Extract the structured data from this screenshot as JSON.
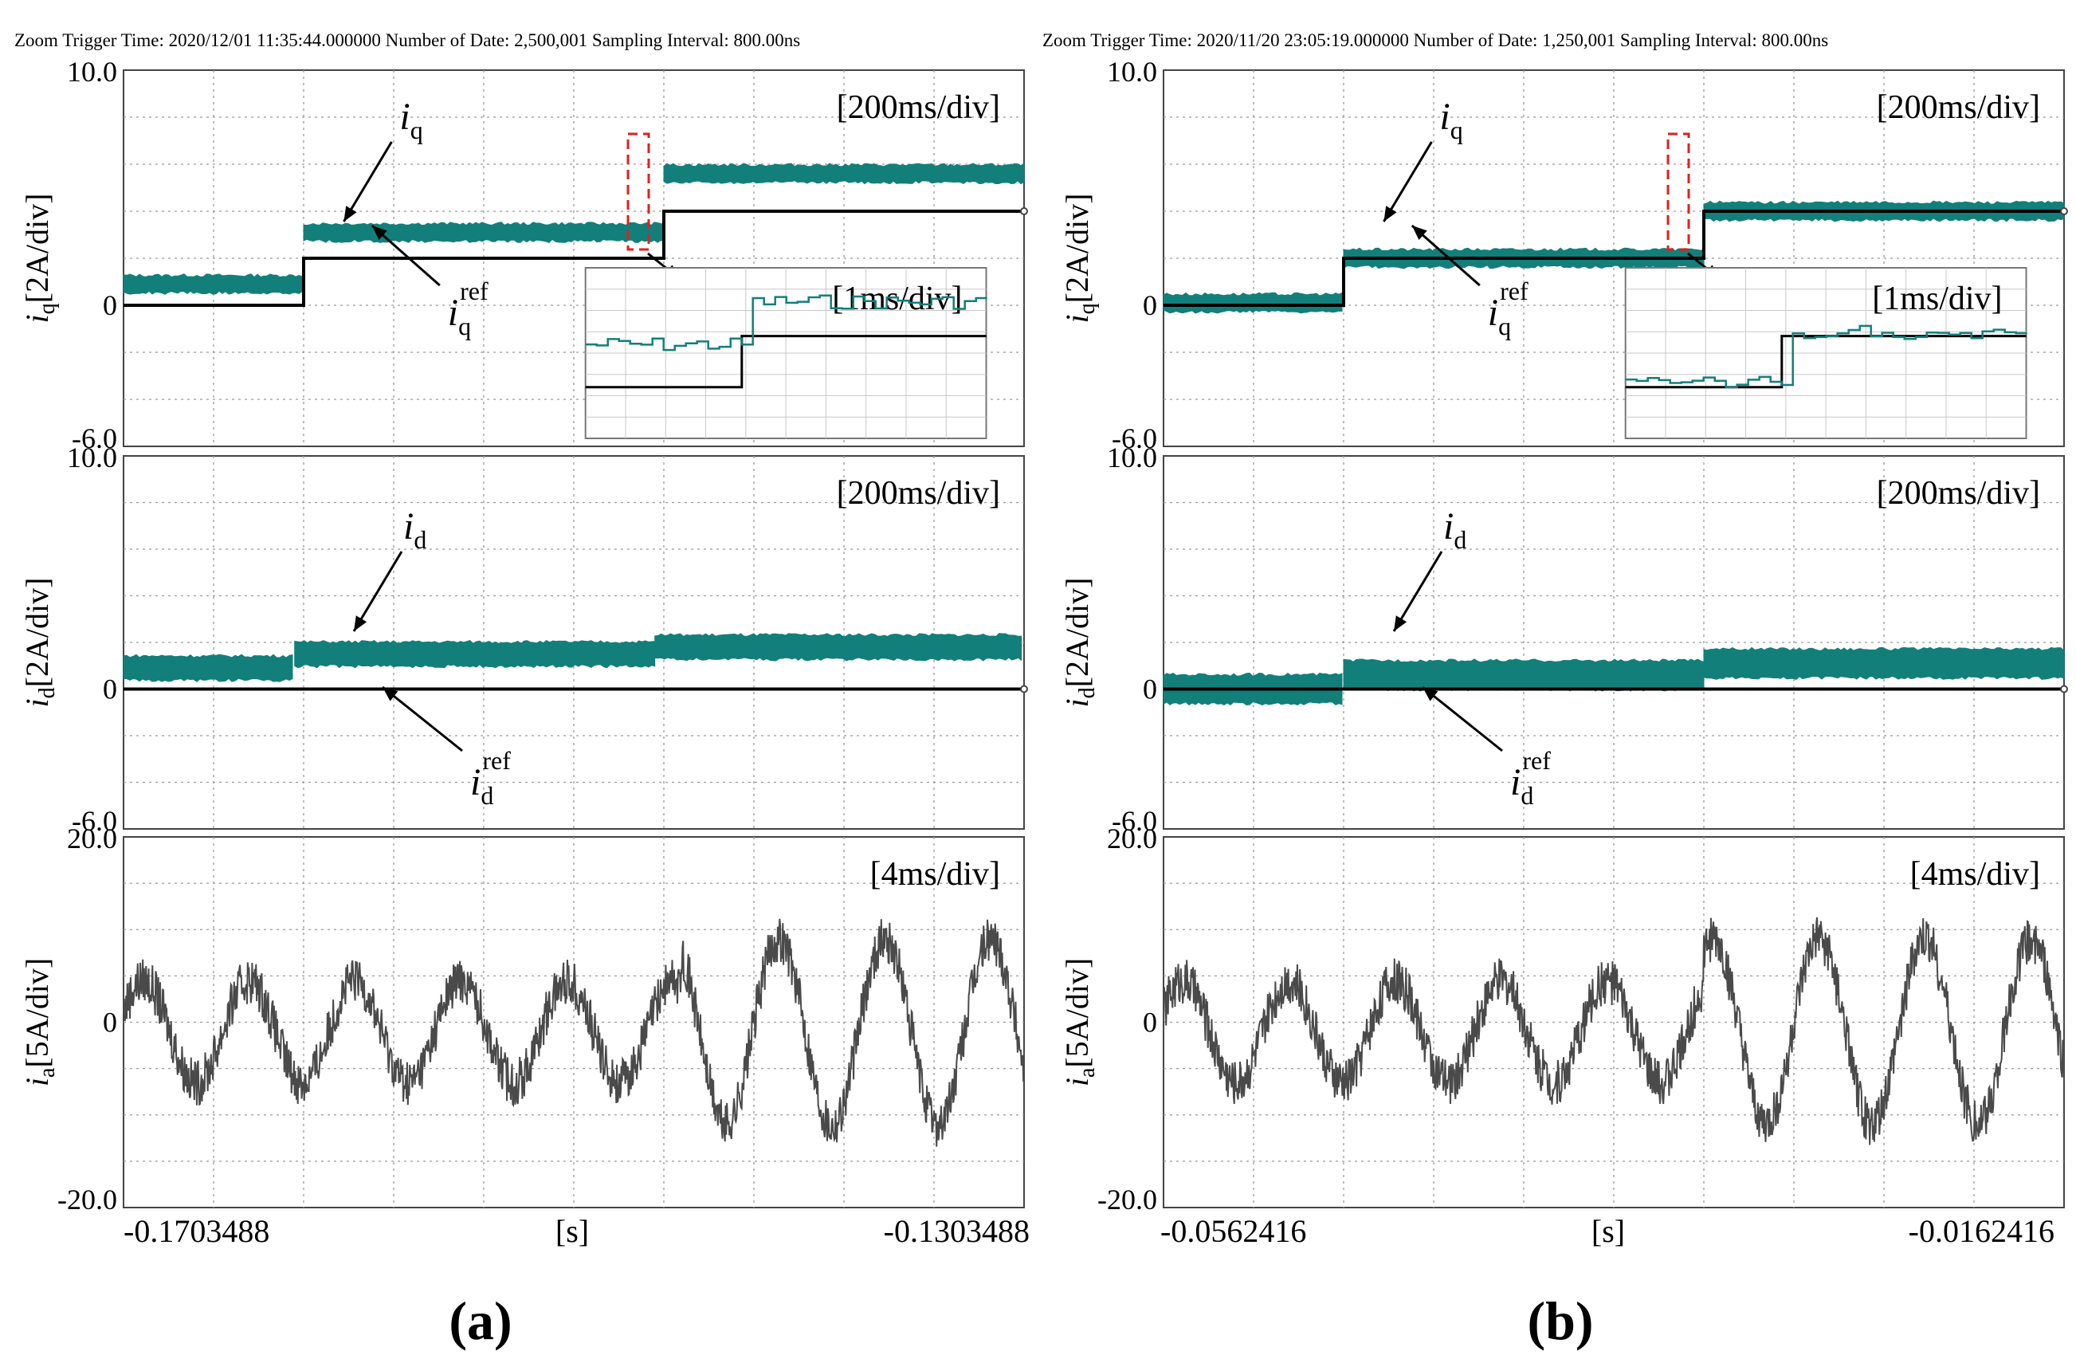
{
  "colors": {
    "measured": "#127f7a",
    "reference": "#000000",
    "phase": "#4a4a4a",
    "grid": "#9a9a9a",
    "highlight": "#e02020"
  },
  "figure": {
    "panels": [
      {
        "id": "a",
        "label": "(a)",
        "header": "Zoom Trigger Time: 2020/12/01 11:35:44.000000   Number of Date: 2,500,001 Sampling Interval: 800.00ns",
        "x_start": "-0.1703488",
        "x_end": "-0.1303488",
        "x_unit": "[s]"
      },
      {
        "id": "b",
        "label": "(b)",
        "header": "Zoom Trigger Time: 2020/11/20 23:05:19.000000   Number of Date: 1,250,001 Sampling Interval: 800.00ns",
        "x_start": "-0.0562416",
        "x_end": "-0.0162416",
        "x_unit": "[s]"
      }
    ]
  },
  "chart_data": [
    {
      "type": "line",
      "panel": "a",
      "trace": "iq",
      "ylabel_var": "i",
      "ylabel_sub": "q",
      "ylabel_unit": "[2A/div]",
      "ylim": [
        -6,
        10
      ],
      "ytick_labels": [
        "10.0",
        "0",
        "-6.0"
      ],
      "timescale": "[200ms/div]",
      "x_divisions": 10,
      "step_div": [
        2.0,
        6.0
      ],
      "ref_levels": [
        0,
        2,
        4
      ],
      "measured_levels": [
        0.9,
        3.1,
        5.6
      ],
      "measured_band": 0.6,
      "annotations": {
        "measured": "i",
        "measured_sub": "q",
        "reference": "i",
        "reference_sub": "q",
        "reference_sup": "ref"
      },
      "inset": {
        "timescale": "[1ms/div]",
        "ref_levels": [
          0.3,
          0.6
        ],
        "measured_levels": [
          0.55,
          0.8
        ]
      }
    },
    {
      "type": "line",
      "panel": "a",
      "trace": "id",
      "ylabel_var": "i",
      "ylabel_sub": "d",
      "ylabel_unit": "[2A/div]",
      "ylim": [
        -6,
        10
      ],
      "ytick_labels": [
        "10.0",
        "0",
        "-6.0"
      ],
      "timescale": "[200ms/div]",
      "x_divisions": 10,
      "step_div": [
        1.9,
        5.9
      ],
      "ref_levels": [
        0,
        0,
        0
      ],
      "measured_levels": [
        0.9,
        1.5,
        1.8
      ],
      "measured_band": 0.9,
      "annotations": {
        "measured": "i",
        "measured_sub": "d",
        "reference": "i",
        "reference_sub": "d",
        "reference_sup": "ref"
      }
    },
    {
      "type": "line",
      "panel": "a",
      "trace": "ia",
      "ylabel_var": "i",
      "ylabel_sub": "a",
      "ylabel_unit": "[5A/div]",
      "ylim": [
        -20,
        20
      ],
      "ytick_labels": [
        "20.0",
        "0",
        "-20.0"
      ],
      "timescale": "[4ms/div]",
      "x_divisions": 10,
      "periods": 8.5,
      "amplitude": [
        5.5,
        10.0
      ],
      "offset": [
        -1.0,
        -1.0
      ],
      "switch_div": 6.2
    },
    {
      "type": "line",
      "panel": "b",
      "trace": "iq",
      "ylabel_var": "i",
      "ylabel_sub": "q",
      "ylabel_unit": "[2A/div]",
      "ylim": [
        -6,
        10
      ],
      "ytick_labels": [
        "10.0",
        "0",
        "-6.0"
      ],
      "timescale": "[200ms/div]",
      "x_divisions": 10,
      "step_div": [
        2.0,
        6.0
      ],
      "ref_levels": [
        0,
        2,
        4
      ],
      "measured_levels": [
        0.1,
        2.0,
        4.0
      ],
      "measured_band": 0.6,
      "annotations": {
        "measured": "i",
        "measured_sub": "q",
        "reference": "i",
        "reference_sub": "q",
        "reference_sup": "ref"
      },
      "inset": {
        "timescale": "[1ms/div]",
        "ref_levels": [
          0.3,
          0.6
        ],
        "measured_levels": [
          0.32,
          0.62
        ]
      }
    },
    {
      "type": "line",
      "panel": "b",
      "trace": "id",
      "ylabel_var": "i",
      "ylabel_sub": "d",
      "ylabel_unit": "[2A/div]",
      "ylim": [
        -6,
        10
      ],
      "ytick_labels": [
        "10.0",
        "0",
        "-6.0"
      ],
      "timescale": "[200ms/div]",
      "x_divisions": 10,
      "step_div": [
        2.0,
        6.0
      ],
      "ref_levels": [
        0,
        0,
        0
      ],
      "measured_levels": [
        0.0,
        0.6,
        1.1
      ],
      "measured_band": 1.1,
      "annotations": {
        "measured": "i",
        "measured_sub": "d",
        "reference": "i",
        "reference_sub": "d",
        "reference_sup": "ref"
      }
    },
    {
      "type": "line",
      "panel": "b",
      "trace": "ia",
      "ylabel_var": "i",
      "ylabel_sub": "a",
      "ylabel_unit": "[5A/div]",
      "ylim": [
        -20,
        20
      ],
      "ytick_labels": [
        "20.0",
        "0",
        "-20.0"
      ],
      "timescale": "[4ms/div]",
      "x_divisions": 10,
      "periods": 8.5,
      "amplitude": [
        5.5,
        10.0
      ],
      "offset": [
        -1.0,
        -1.0
      ],
      "switch_div": 6.0
    }
  ]
}
